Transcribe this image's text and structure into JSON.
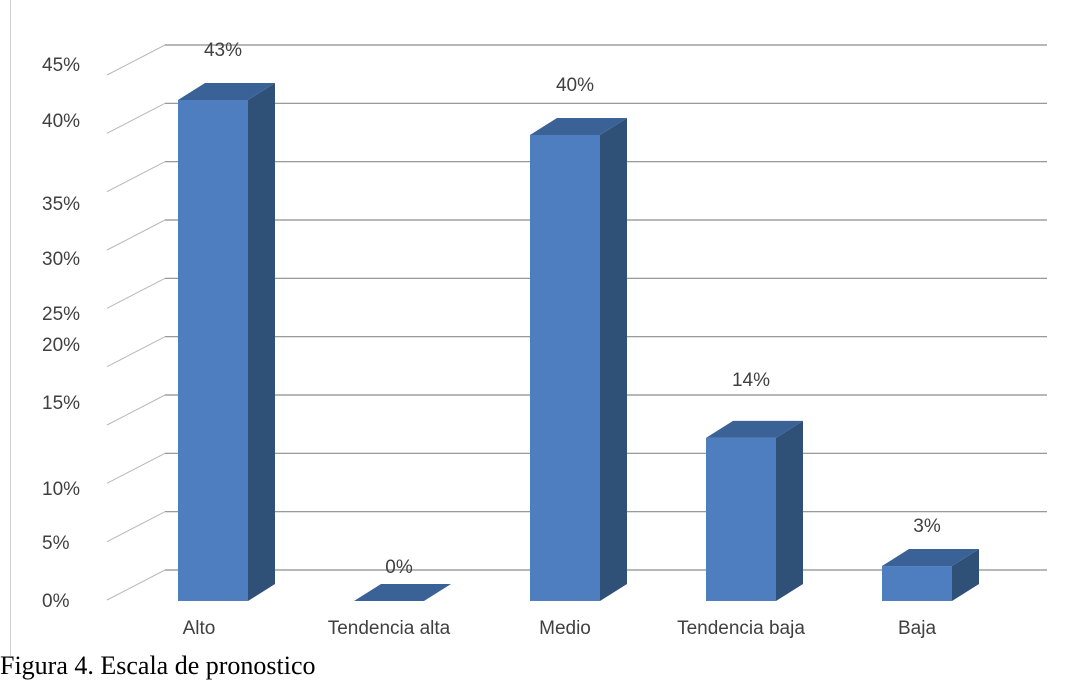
{
  "caption": "Figura 4. Escala de pronostico",
  "colors": {
    "bar_front": "#4E7EBF",
    "bar_side": "#2F5077",
    "bar_top": "#3A6297",
    "grid": "#8c8c8c",
    "text": "#404040"
  },
  "chart_data": {
    "type": "bar",
    "variant": "3d-column",
    "categories": [
      "Alto",
      "Tendencia alta",
      "Medio",
      "Tendencia baja",
      "Baja"
    ],
    "values": [
      43,
      0,
      40,
      14,
      3
    ],
    "data_labels": [
      "43%",
      "0%",
      "40%",
      "14%",
      "3%"
    ],
    "y_ticks": [
      0,
      5,
      10,
      15,
      20,
      25,
      30,
      35,
      40,
      45
    ],
    "y_tick_labels": [
      "0%",
      "5%",
      "10%",
      "15%",
      "20%",
      "25%",
      "30%",
      "35%",
      "40%",
      "45%"
    ],
    "ylim": [
      0,
      45
    ],
    "grid": true,
    "legend": "none"
  }
}
